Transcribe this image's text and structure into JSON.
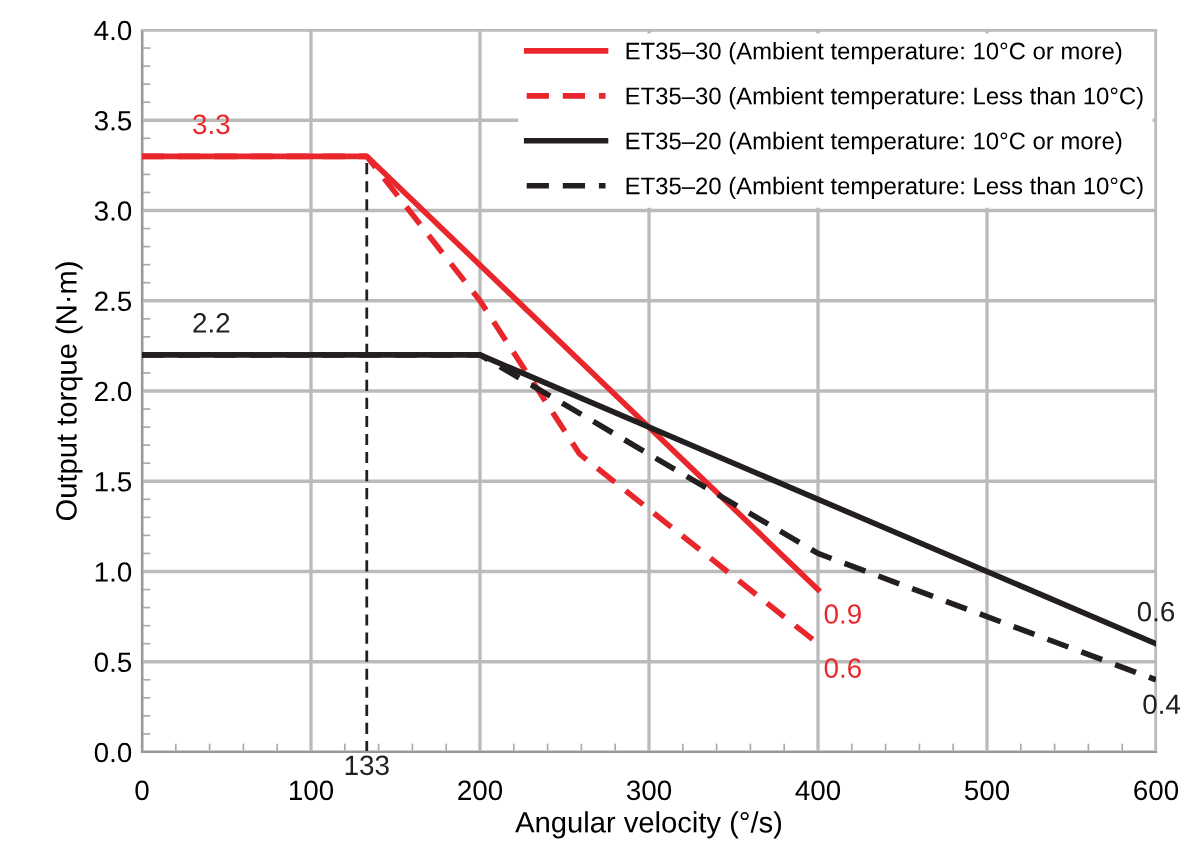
{
  "chart_data": {
    "type": "line",
    "xlabel": "Angular velocity (°/s)",
    "ylabel": "Output torque (N·m)",
    "xlim": [
      0,
      600
    ],
    "ylim": [
      0,
      4.0
    ],
    "xticks": [
      0,
      100,
      200,
      300,
      400,
      500,
      600
    ],
    "yticks": [
      {
        "value": 0,
        "label": "0.0"
      },
      {
        "value": 0.5,
        "label": "0.5"
      },
      {
        "value": 1,
        "label": "1.0"
      },
      {
        "value": 1.5,
        "label": "1.5"
      },
      {
        "value": 2,
        "label": "2.0"
      },
      {
        "value": 2.5,
        "label": "2.5"
      },
      {
        "value": 3,
        "label": "3.0"
      },
      {
        "value": 3.5,
        "label": "3.5"
      },
      {
        "value": 4,
        "label": "4.0"
      }
    ],
    "grid": true,
    "legend": "top right",
    "marker": "none",
    "series": [
      {
        "name": "ET35–30 (Ambient temperature: 10°C or more)",
        "color": "#e8262b",
        "line_style": "solid",
        "x": [
          0,
          133,
          400
        ],
        "values": [
          3.3,
          3.3,
          0.9
        ],
        "value_labels": [
          "3.3",
          null,
          "0.9"
        ]
      },
      {
        "name": "ET35–30 (Ambient temperature: Less than 10°C)",
        "color": "#e8262b",
        "line_style": "dashed",
        "x": [
          0,
          133,
          200,
          259,
          400
        ],
        "values": [
          3.3,
          3.3,
          2.5,
          1.65,
          0.6
        ],
        "value_labels": [
          null,
          null,
          null,
          null,
          "0.6"
        ]
      },
      {
        "name": "ET35–20 (Ambient temperature: 10°C or more)",
        "color": "#231f20",
        "line_style": "solid",
        "x": [
          0,
          200,
          600
        ],
        "values": [
          2.2,
          2.2,
          0.6
        ],
        "value_labels": [
          "2.2",
          null,
          "0.6"
        ]
      },
      {
        "name": "ET35–20 (Ambient temperature: Less than 10°C)",
        "color": "#231f20",
        "line_style": "dashed",
        "x": [
          0,
          200,
          400,
          600
        ],
        "values": [
          2.2,
          2.2,
          1.1,
          0.4
        ],
        "value_labels": [
          null,
          null,
          null,
          "0.4"
        ]
      }
    ],
    "ref_lines": [
      {
        "axis": "x",
        "value": 133,
        "label": "133",
        "color": "#231f20",
        "line_style": "dashed"
      }
    ]
  }
}
